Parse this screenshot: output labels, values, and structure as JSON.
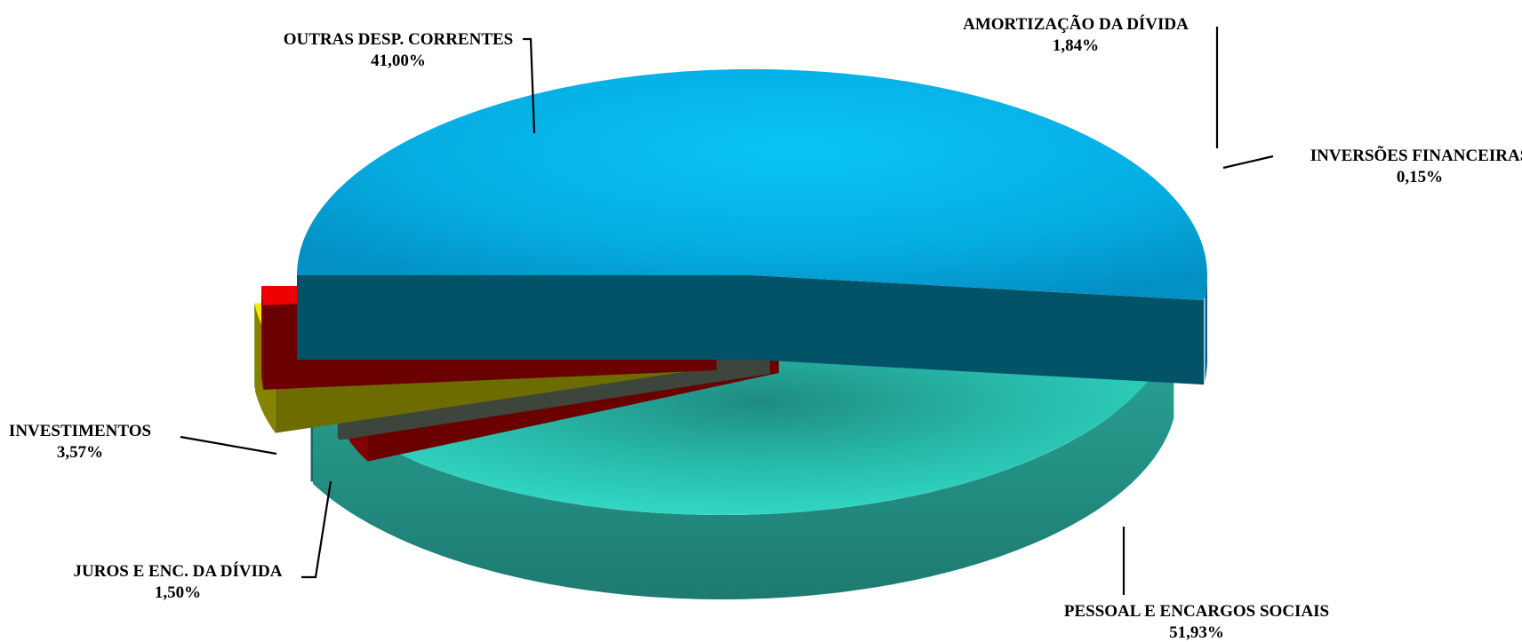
{
  "chart_data": {
    "type": "pie",
    "title": "",
    "slices": [
      {
        "label": "PESSOAL E ENCARGOS SOCIAIS",
        "value": 51.93,
        "value_text": "51,93%",
        "color": "#05b7e8"
      },
      {
        "label": "OUTRAS DESP. CORRENTES",
        "value": 41.0,
        "value_text": "41,00%",
        "color": "#2fd9c6"
      },
      {
        "label": "AMORTIZAÇÃO DA DÍVIDA",
        "value": 1.84,
        "value_text": "1,84%",
        "color": "#ee0000"
      },
      {
        "label": "INVERSÕES FINANCEIRAS",
        "value": 0.15,
        "value_text": "0,15%",
        "color": "#8a9a86"
      },
      {
        "label": "INVESTIMENTOS",
        "value": 3.57,
        "value_text": "3,57%",
        "color": "#f2ef00"
      },
      {
        "label": "JUROS E ENC. DA DÍVIDA",
        "value": 1.5,
        "value_text": "1,50%",
        "color": "#ee0000"
      }
    ],
    "style": "3d-exploded-pie",
    "legend": "none"
  }
}
